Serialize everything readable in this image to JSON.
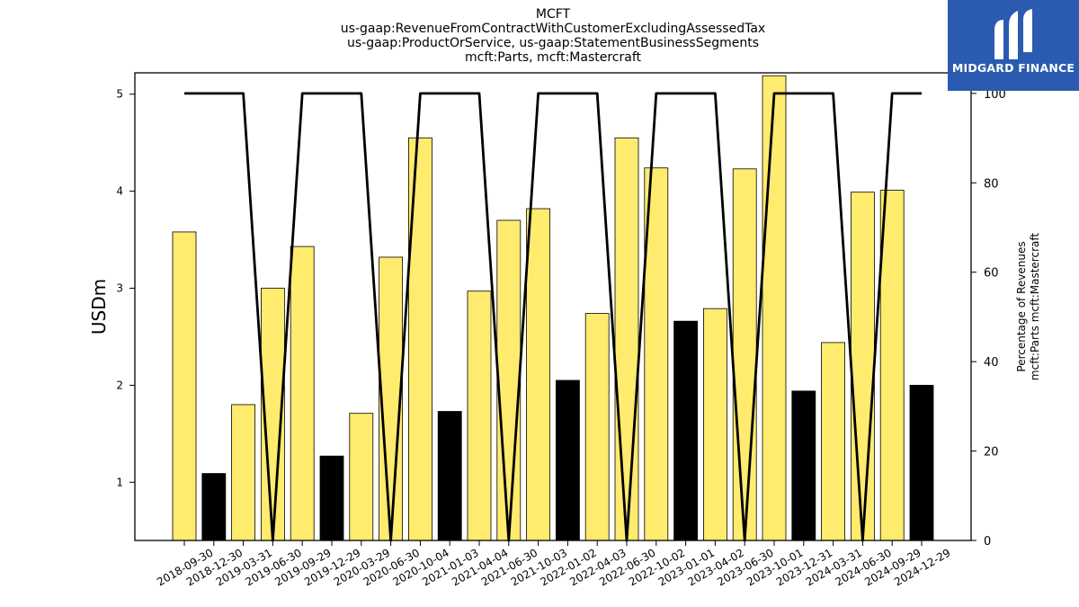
{
  "logo": {
    "text": "MIDGARD FINANCE",
    "icon": "midgard-logo-icon",
    "background": "#2b5bb1"
  },
  "chart_data": {
    "type": "bar",
    "title_lines": [
      "MCFT",
      "us-gaap:RevenueFromContractWithCustomerExcludingAssessedTax",
      "us-gaap:ProductOrService, us-gaap:StatementBusinessSegments",
      "mcft:Parts, mcft:Mastercraft"
    ],
    "ylabel": "USDm",
    "ylabel_right": [
      "Percentage of Revenues",
      "mcft:Parts mcft:Mastercraft"
    ],
    "ylim": [
      0.4,
      5.22
    ],
    "yticks": [
      1,
      2,
      3,
      4,
      5
    ],
    "ylim_right": [
      0,
      104.6
    ],
    "yticks_right": [
      0,
      20,
      40,
      60,
      80,
      100
    ],
    "categories": [
      "2018-09-30",
      "2018-12-30",
      "2019-03-31",
      "2019-06-30",
      "2019-09-29",
      "2019-12-29",
      "2020-03-29",
      "2020-06-30",
      "2020-10-04",
      "2021-01-03",
      "2021-04-04",
      "2021-06-30",
      "2021-10-03",
      "2022-01-02",
      "2022-04-03",
      "2022-06-30",
      "2022-10-02",
      "2023-01-01",
      "2023-04-02",
      "2023-06-30",
      "2023-10-01",
      "2023-12-31",
      "2024-03-31",
      "2024-06-30",
      "2024-09-29",
      "2024-12-29"
    ],
    "values": [
      3.58,
      1.09,
      1.8,
      3.0,
      3.43,
      1.27,
      1.71,
      3.32,
      4.55,
      1.73,
      2.97,
      3.7,
      3.82,
      2.05,
      2.74,
      4.55,
      4.24,
      2.66,
      2.79,
      4.23,
      5.19,
      1.94,
      2.44,
      3.99,
      4.01,
      2.0
    ],
    "bar_colors": [
      "#ffeb6e",
      "#000000",
      "#ffeb6e",
      "#ffeb6e",
      "#ffeb6e",
      "#000000",
      "#ffeb6e",
      "#ffeb6e",
      "#ffeb6e",
      "#000000",
      "#ffeb6e",
      "#ffeb6e",
      "#ffeb6e",
      "#000000",
      "#ffeb6e",
      "#ffeb6e",
      "#ffeb6e",
      "#000000",
      "#ffeb6e",
      "#ffeb6e",
      "#ffeb6e",
      "#000000",
      "#ffeb6e",
      "#ffeb6e",
      "#ffeb6e",
      "#000000"
    ],
    "percentage": [
      100,
      100,
      100,
      0,
      100,
      100,
      100,
      0,
      100,
      100,
      100,
      0,
      100,
      100,
      100,
      0,
      100,
      100,
      100,
      0,
      100,
      100,
      100,
      0,
      100,
      100
    ],
    "line_color": "#000000",
    "grid": false
  }
}
